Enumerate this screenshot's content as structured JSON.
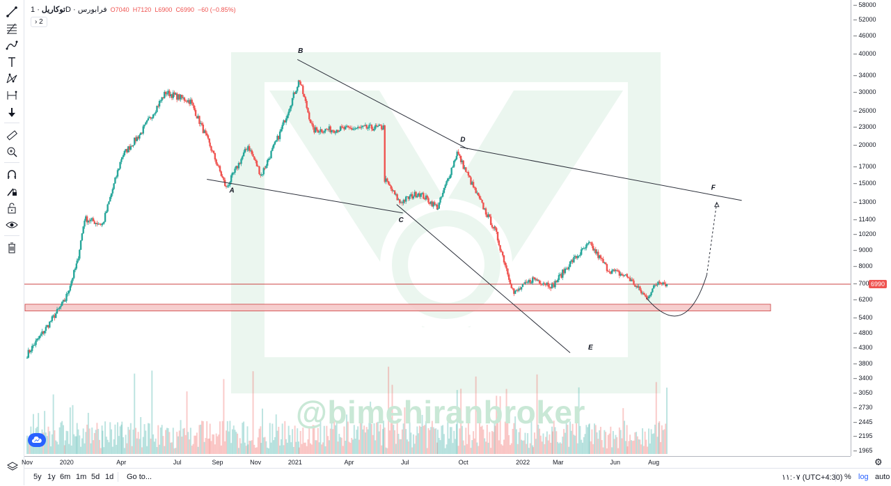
{
  "legend": {
    "symbol": "توکاریل",
    "interval": "1D",
    "exchange": "فرابورس",
    "open": "O7040",
    "high": "H7120",
    "low": "L6900",
    "close": "C6990",
    "change": "−60 (−0.85%)",
    "indicators_badge": "2"
  },
  "last_price_tag": "6990",
  "watermark": "@bimehiranbroker",
  "bottom_bar": {
    "ranges": [
      "5y",
      "1y",
      "6m",
      "1m",
      "5d",
      "1d"
    ],
    "goto": "Go to...",
    "clock": "۱۱:۰۷ (UTC+4:30)",
    "percent": "%",
    "log": "log",
    "auto": "auto"
  },
  "colors": {
    "up": "#26a69a",
    "down": "#ef5350",
    "trendline": "#2a2e39",
    "zone_fill": "#f6c9c9",
    "zone_border": "#c62828"
  },
  "chart_data": {
    "type": "candlestick",
    "scale": "log",
    "y_ticks": [
      58000,
      52000,
      46000,
      40000,
      34000,
      30000,
      26000,
      23000,
      20000,
      17000,
      15000,
      13000,
      11400,
      10200,
      9000,
      8000,
      7000,
      6200,
      5400,
      4800,
      4300,
      3800,
      3400,
      3050,
      2730,
      2445,
      2195,
      1965
    ],
    "x_ticks": [
      "Nov",
      "2020",
      "Apr",
      "Jul",
      "Sep",
      "Nov",
      "2021",
      "Apr",
      "Jul",
      "Oct",
      "2022",
      "Mar",
      "Jun",
      "Aug"
    ],
    "close_path": [
      {
        "t": "2019-11-01",
        "v": 4100
      },
      {
        "t": "2019-12-01",
        "v": 5000
      },
      {
        "t": "2020-01-01",
        "v": 6200
      },
      {
        "t": "2020-01-20",
        "v": 8200
      },
      {
        "t": "2020-02-01",
        "v": 11500
      },
      {
        "t": "2020-03-01",
        "v": 11000
      },
      {
        "t": "2020-04-01",
        "v": 18500
      },
      {
        "t": "2020-05-01",
        "v": 22000
      },
      {
        "t": "2020-06-10",
        "v": 30000
      },
      {
        "t": "2020-07-20",
        "v": 28000
      },
      {
        "t": "2020-08-20",
        "v": 20000
      },
      {
        "t": "2020-09-15",
        "v": 14500
      },
      {
        "t": "2020-10-20",
        "v": 20000
      },
      {
        "t": "2020-11-10",
        "v": 16000
      },
      {
        "t": "2020-12-10",
        "v": 22000
      },
      {
        "t": "2021-01-10",
        "v": 33000
      },
      {
        "t": "2021-02-01",
        "v": 22500
      },
      {
        "t": "2021-05-25",
        "v": 23000
      },
      {
        "t": "2021-05-27",
        "v": 15500
      },
      {
        "t": "2021-06-20",
        "v": 13000
      },
      {
        "t": "2021-07-20",
        "v": 14000
      },
      {
        "t": "2021-08-20",
        "v": 12500
      },
      {
        "t": "2021-09-20",
        "v": 19000
      },
      {
        "t": "2021-10-20",
        "v": 14000
      },
      {
        "t": "2021-11-20",
        "v": 10500
      },
      {
        "t": "2021-12-20",
        "v": 6500
      },
      {
        "t": "2022-01-20",
        "v": 7300
      },
      {
        "t": "2022-02-20",
        "v": 6900
      },
      {
        "t": "2022-03-20",
        "v": 8200
      },
      {
        "t": "2022-04-20",
        "v": 9500
      },
      {
        "t": "2022-05-20",
        "v": 7800
      },
      {
        "t": "2022-06-20",
        "v": 7400
      },
      {
        "t": "2022-07-20",
        "v": 6300
      },
      {
        "t": "2022-08-10",
        "v": 7200
      },
      {
        "t": "2022-08-22",
        "v": 6990
      }
    ],
    "point_labels": [
      "A",
      "B",
      "C",
      "D",
      "E",
      "F"
    ],
    "support_zone": [
      5700,
      6000
    ],
    "horizontal_line": 6990
  }
}
